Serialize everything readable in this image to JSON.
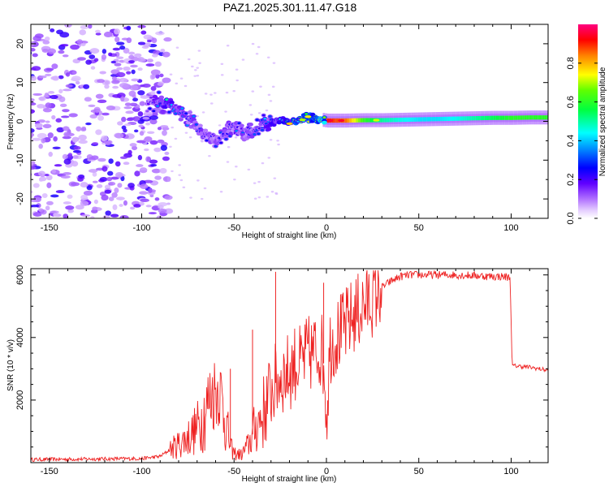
{
  "title": "PAZ1.2025.301.11.47.G18",
  "chart_data": [
    {
      "type": "heatmap",
      "name": "spectrogram",
      "xlabel": "Height of straight line (km)",
      "ylabel": "Frequency (Hz)",
      "xlim": [
        -160,
        120
      ],
      "ylim": [
        -25,
        25
      ],
      "xticks": [
        -150,
        -100,
        -50,
        0,
        50,
        100
      ],
      "yticks": [
        -20,
        -10,
        0,
        10,
        20
      ],
      "colorbar": {
        "label": "Normalized spectral amplitude",
        "range": [
          0.0,
          1.0
        ],
        "ticks": [
          0.0,
          0.2,
          0.4,
          0.6,
          0.8
        ],
        "tick_labels": [
          "0.0",
          "0.2",
          "0.4",
          "0.6",
          "0.8"
        ]
      },
      "noise_region_x": [
        -160,
        -88
      ],
      "ridge": [
        {
          "x": -95,
          "y": 4.5,
          "amp": 0.25
        },
        {
          "x": -90,
          "y": 4.8,
          "amp": 0.38
        },
        {
          "x": -86,
          "y": 4.5,
          "amp": 0.45
        },
        {
          "x": -80,
          "y": 3.0,
          "amp": 0.3
        },
        {
          "x": -75,
          "y": 0.8,
          "amp": 0.32
        },
        {
          "x": -70,
          "y": -1.5,
          "amp": 0.3
        },
        {
          "x": -65,
          "y": -3.5,
          "amp": 0.28
        },
        {
          "x": -60,
          "y": -5.5,
          "amp": 0.26
        },
        {
          "x": -55,
          "y": -3.0,
          "amp": 0.3
        },
        {
          "x": -50,
          "y": -1.5,
          "amp": 0.3
        },
        {
          "x": -45,
          "y": -3.0,
          "amp": 0.28
        },
        {
          "x": -40,
          "y": -2.5,
          "amp": 0.3
        },
        {
          "x": -35,
          "y": -1.0,
          "amp": 0.32
        },
        {
          "x": -30,
          "y": 0.0,
          "amp": 0.4
        },
        {
          "x": -25,
          "y": 0.2,
          "amp": 0.45
        },
        {
          "x": -20,
          "y": -0.5,
          "amp": 0.55
        },
        {
          "x": -15,
          "y": 0.3,
          "amp": 0.65
        },
        {
          "x": -10,
          "y": 1.2,
          "amp": 0.72
        },
        {
          "x": -5,
          "y": 0.6,
          "amp": 0.7
        },
        {
          "x": 0,
          "y": 0.2,
          "amp": 0.9
        },
        {
          "x": 10,
          "y": 0.2,
          "amp": 0.85
        },
        {
          "x": 20,
          "y": 0.3,
          "amp": 0.6
        },
        {
          "x": 30,
          "y": 0.3,
          "amp": 0.5
        },
        {
          "x": 40,
          "y": 0.4,
          "amp": 0.45
        },
        {
          "x": 50,
          "y": 0.5,
          "amp": 0.42
        },
        {
          "x": 60,
          "y": 0.6,
          "amp": 0.42
        },
        {
          "x": 70,
          "y": 0.7,
          "amp": 0.45
        },
        {
          "x": 80,
          "y": 0.8,
          "amp": 0.5
        },
        {
          "x": 90,
          "y": 0.9,
          "amp": 0.55
        },
        {
          "x": 100,
          "y": 0.9,
          "amp": 0.6
        },
        {
          "x": 110,
          "y": 1.0,
          "amp": 0.6
        },
        {
          "x": 120,
          "y": 1.0,
          "amp": 0.6
        }
      ]
    },
    {
      "type": "line",
      "name": "snr",
      "xlabel": "Height of straight line (km)",
      "ylabel": "SNR (10 * v/v)",
      "xlim": [
        -160,
        120
      ],
      "ylim": [
        0,
        6200
      ],
      "xticks": [
        -150,
        -100,
        -50,
        0,
        50,
        100
      ],
      "yticks": [
        2000,
        4000,
        6000
      ],
      "color": "#ee2222",
      "series": [
        {
          "name": "SNR",
          "x": [
            -160,
            -140,
            -120,
            -100,
            -90,
            -85,
            -80,
            -75,
            -70,
            -66,
            -62,
            -58,
            -55,
            -52,
            -50,
            -46,
            -42,
            -38,
            -34,
            -30,
            -27,
            -24,
            -20,
            -17,
            -14,
            -11,
            -8,
            -5,
            -3,
            -1,
            0,
            2,
            5,
            10,
            15,
            20,
            25,
            30,
            35,
            40,
            45,
            50,
            60,
            70,
            80,
            90,
            95,
            99.5,
            100.5,
            105,
            110,
            115,
            120
          ],
          "values": [
            100,
            110,
            120,
            130,
            200,
            400,
            600,
            800,
            1100,
            1600,
            2200,
            2400,
            1500,
            500,
            300,
            250,
            600,
            1200,
            1600,
            2300,
            2600,
            2800,
            2900,
            3200,
            3100,
            3400,
            3500,
            3600,
            3700,
            3000,
            1400,
            3800,
            4000,
            4300,
            4700,
            5000,
            5300,
            5600,
            5800,
            5950,
            6000,
            6000,
            6000,
            6000,
            5980,
            5950,
            5950,
            5920,
            3100,
            3080,
            3050,
            3000,
            2950
          ]
        }
      ]
    }
  ]
}
